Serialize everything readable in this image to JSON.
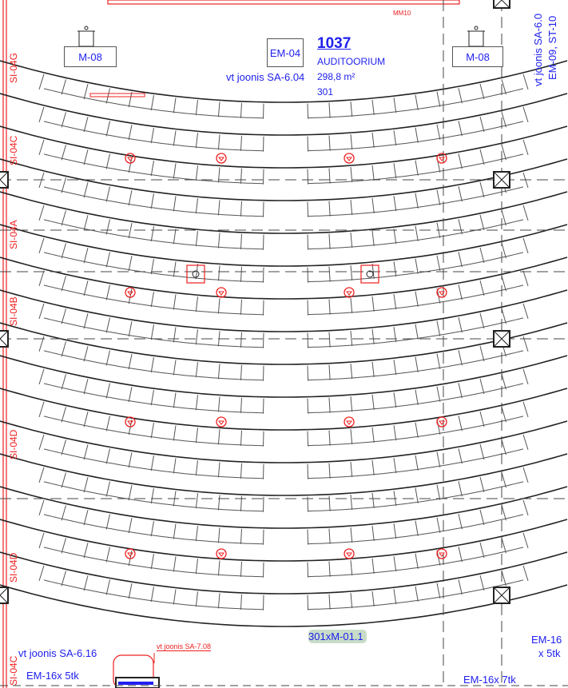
{
  "room": {
    "number": "1037",
    "name": "AUDITOORIUM",
    "area": "298,8 m²",
    "seats": "301",
    "ref": "vt joonis SA-6.04"
  },
  "equipment": {
    "m08_left": "M-08",
    "m08_right": "M-08",
    "em04": "EM-04",
    "mm10": "MM10"
  },
  "right_refs": {
    "line1": "vt joonis SA-6.0",
    "line2": "EM-09, ST-10"
  },
  "left_labels": [
    "SI-04G",
    "SI-04C",
    "SI-04A",
    "SI-04B",
    "SI-04D",
    "SI-04D",
    "SI-04C"
  ],
  "bottom": {
    "seat_tag": "301xM-01.1",
    "ref_sa616": "vt joonis SA-6.16",
    "ref_sa708": "vt joonis SA-7.08",
    "em16_left": "EM-16x 5tk",
    "em16_right_a": "EM-16",
    "em16_right_b": "x 5tk",
    "em16_bottom_right": "EM-16x 7tk"
  },
  "colors": {
    "annotation": "#2020ee",
    "electrical": "#ee2020",
    "lines": "#222222",
    "seat_tag_bg": "#c8dcc8"
  }
}
